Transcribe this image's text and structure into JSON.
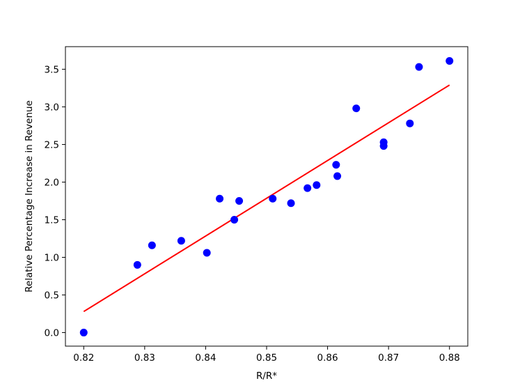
{
  "chart_data": {
    "type": "scatter",
    "title": "",
    "xlabel": "R/R*",
    "ylabel": "Relative Percentage Increase in Revenue",
    "xlim": [
      0.817,
      0.883
    ],
    "ylim": [
      -0.18,
      3.8
    ],
    "grid": false,
    "x_ticks": [
      0.82,
      0.83,
      0.84,
      0.85,
      0.86,
      0.87,
      0.88
    ],
    "x_tick_labels": [
      "0.82",
      "0.83",
      "0.84",
      "0.85",
      "0.86",
      "0.87",
      "0.88"
    ],
    "y_ticks": [
      0.0,
      0.5,
      1.0,
      1.5,
      2.0,
      2.5,
      3.0,
      3.5
    ],
    "y_tick_labels": [
      "0.0",
      "0.5",
      "1.0",
      "1.5",
      "2.0",
      "2.5",
      "3.0",
      "3.5"
    ],
    "points": {
      "color": "#0000ff",
      "x": [
        0.82,
        0.8288,
        0.8312,
        0.836,
        0.8402,
        0.8423,
        0.8447,
        0.8455,
        0.851,
        0.854,
        0.8567,
        0.8582,
        0.8614,
        0.8616,
        0.8647,
        0.8692,
        0.8692,
        0.8735,
        0.875,
        0.88
      ],
      "y": [
        0.0,
        0.9,
        1.16,
        1.22,
        1.06,
        1.78,
        1.5,
        1.75,
        1.78,
        1.72,
        1.92,
        1.96,
        2.23,
        2.08,
        2.98,
        2.53,
        2.48,
        2.78,
        3.53,
        3.61
      ]
    },
    "fit_line": {
      "color": "#ff0000",
      "x": [
        0.82,
        0.88
      ],
      "y": [
        0.28,
        3.29
      ]
    }
  }
}
